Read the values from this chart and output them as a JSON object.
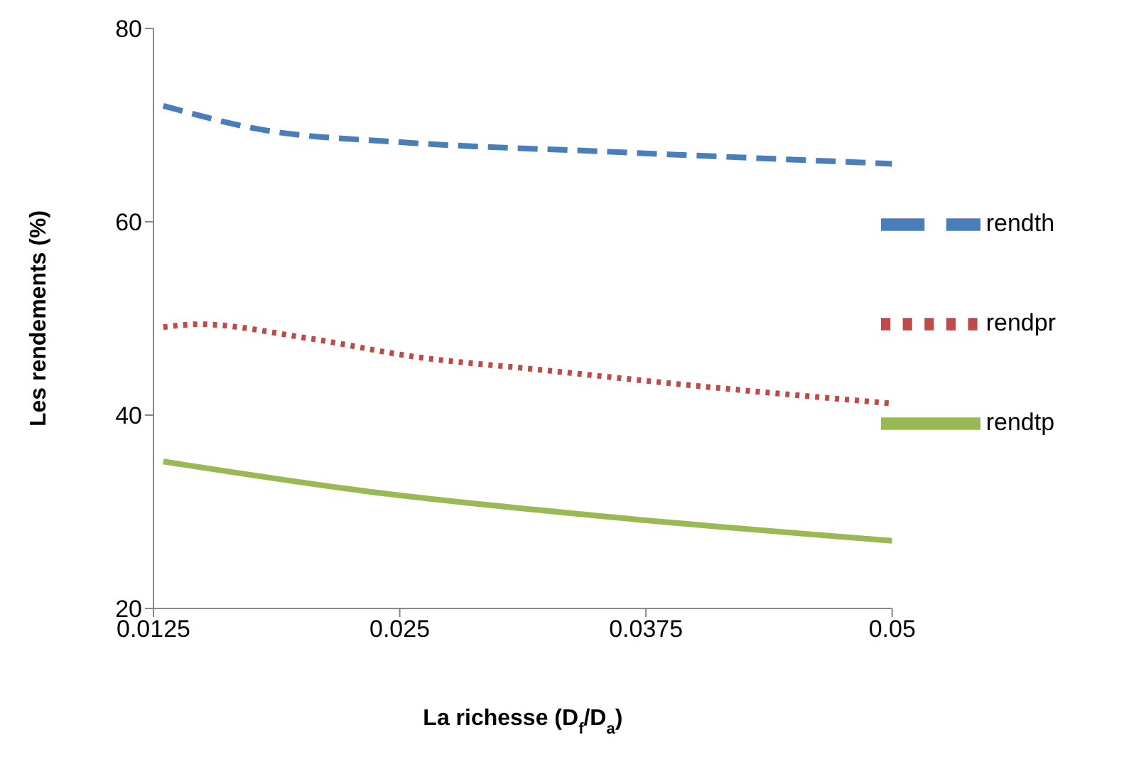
{
  "chart_data": {
    "type": "line",
    "xlabel": "La richesse (D$_{f}$/D$_{a}$)",
    "ylabel": "Les rendements (%)",
    "xlim": [
      0.0125,
      0.05
    ],
    "xticks": [
      0.0125,
      0.025,
      0.0375,
      0.05
    ],
    "ylim": [
      20,
      80
    ],
    "yticks": [
      20,
      40,
      60,
      80
    ],
    "grid": false,
    "legend": "right",
    "marker": "none",
    "series": [
      {
        "name": "rendth",
        "color": "#4a7ebb",
        "line_style": "dashed",
        "x": [
          0.013,
          0.0178,
          0.0253,
          0.035,
          0.05
        ],
        "values": [
          72,
          69.6,
          68.2,
          67.3,
          66
        ]
      },
      {
        "name": "rendpr",
        "color": "#be4b48",
        "line_style": "dotted",
        "x": [
          0.013,
          0.0148,
          0.0202,
          0.0259,
          0.0316,
          0.0402,
          0.05
        ],
        "values": [
          49.1,
          49.4,
          48,
          46,
          44.8,
          43,
          41.2
        ]
      },
      {
        "name": "rendtp",
        "color": "#98b954",
        "line_style": "solid",
        "x": [
          0.013,
          0.0234,
          0.035,
          0.05
        ],
        "values": [
          35.2,
          32.1,
          29.6,
          27
        ]
      }
    ]
  }
}
